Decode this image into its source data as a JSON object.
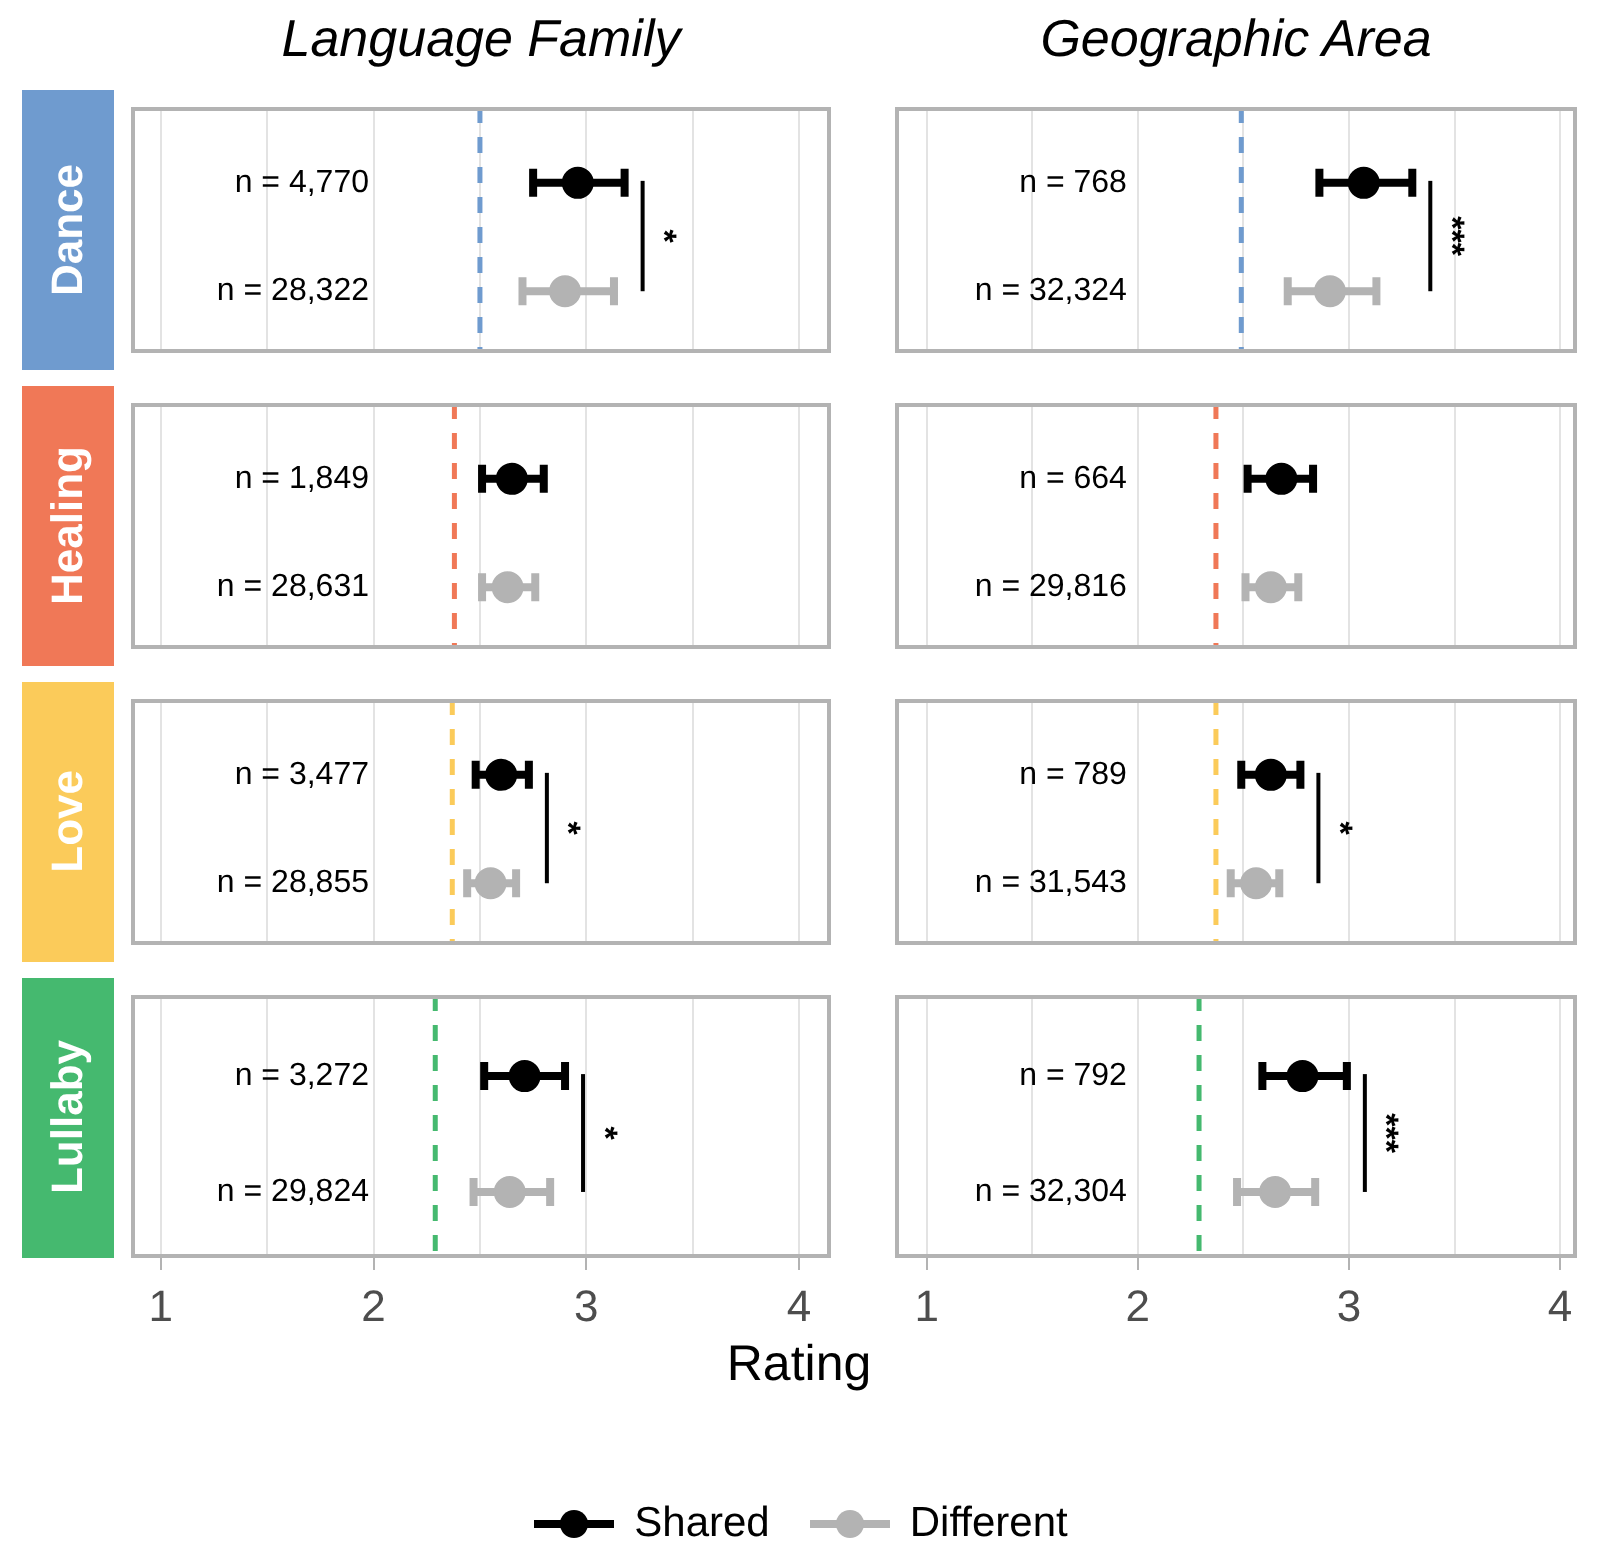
{
  "chart_data": [
    {
      "type": "scatter",
      "orientation": "horizontal",
      "title": "Language Family",
      "ylabel": "Dance",
      "categories": [
        "n = 4,770",
        "n = 28,322"
      ],
      "series": [
        {
          "color": "#000000",
          "values": [
            2.96,
            null
          ],
          "errors": [
            [
              2.75,
              3.18
            ],
            null
          ]
        },
        {
          "color": "#b3b3b3",
          "values": [
            null,
            2.9
          ],
          "errors": [
            null,
            [
              2.7,
              3.13
            ]
          ]
        }
      ],
      "xlim": [
        0.86,
        4.15
      ],
      "xticks": [
        1,
        {
          "value": 1.5,
          "label": null
        },
        2,
        {
          "value": 2.5,
          "label": null
        },
        3,
        {
          "value": 3.5,
          "label": null
        },
        4
      ],
      "grid": "x",
      "marker": "circle",
      "ref_lines": [
        {
          "axis": "x",
          "value": 2.5,
          "color": "#6f9bcf",
          "line_style": "dashed"
        }
      ],
      "annotations": [
        "*"
      ],
      "tick_labels": "y"
    },
    {
      "type": "scatter",
      "orientation": "horizontal",
      "title": "Geographic Area",
      "categories": [
        "n = 768",
        "n = 32,324"
      ],
      "series": [
        {
          "color": "#000000",
          "values": [
            3.07,
            null
          ],
          "errors": [
            [
              2.86,
              3.3
            ],
            null
          ]
        },
        {
          "color": "#b3b3b3",
          "values": [
            null,
            2.91
          ],
          "errors": [
            null,
            [
              2.71,
              3.13
            ]
          ]
        }
      ],
      "xlim": [
        0.85,
        4.08
      ],
      "xticks": [
        1,
        {
          "value": 1.5,
          "label": null
        },
        2,
        {
          "value": 2.5,
          "label": null
        },
        3,
        {
          "value": 3.5,
          "label": null
        },
        4
      ],
      "grid": "x",
      "marker": "circle",
      "ref_lines": [
        {
          "axis": "x",
          "value": 2.49,
          "color": "#6f9bcf",
          "line_style": "dashed"
        }
      ],
      "annotations": [
        "***"
      ],
      "tick_labels": "y"
    },
    {
      "type": "scatter",
      "orientation": "horizontal",
      "ylabel": "Healing",
      "categories": [
        "n = 1,849",
        "n = 28,631"
      ],
      "series": [
        {
          "color": "#000000",
          "values": [
            2.65,
            null
          ],
          "errors": [
            [
              2.51,
              2.8
            ],
            null
          ]
        },
        {
          "color": "#b3b3b3",
          "values": [
            null,
            2.63
          ],
          "errors": [
            null,
            [
              2.51,
              2.76
            ]
          ]
        }
      ],
      "xlim": [
        0.86,
        4.15
      ],
      "xticks": [
        1,
        {
          "value": 1.5,
          "label": null
        },
        2,
        {
          "value": 2.5,
          "label": null
        },
        3,
        {
          "value": 3.5,
          "label": null
        },
        4
      ],
      "grid": "x",
      "marker": "circle",
      "ref_lines": [
        {
          "axis": "x",
          "value": 2.38,
          "color": "#f07857",
          "line_style": "dashed"
        }
      ],
      "tick_labels": "y"
    },
    {
      "type": "scatter",
      "orientation": "horizontal",
      "categories": [
        "n = 664",
        "n = 29,816"
      ],
      "series": [
        {
          "color": "#000000",
          "values": [
            2.68,
            null
          ],
          "errors": [
            [
              2.52,
              2.83
            ],
            null
          ]
        },
        {
          "color": "#b3b3b3",
          "values": [
            null,
            2.63
          ],
          "errors": [
            null,
            [
              2.51,
              2.76
            ]
          ]
        }
      ],
      "xlim": [
        0.85,
        4.08
      ],
      "xticks": [
        1,
        {
          "value": 1.5,
          "label": null
        },
        2,
        {
          "value": 2.5,
          "label": null
        },
        3,
        {
          "value": 3.5,
          "label": null
        },
        4
      ],
      "grid": "x",
      "marker": "circle",
      "ref_lines": [
        {
          "axis": "x",
          "value": 2.37,
          "color": "#f07857",
          "line_style": "dashed"
        }
      ],
      "tick_labels": "y"
    },
    {
      "type": "scatter",
      "orientation": "horizontal",
      "ylabel": "Love",
      "categories": [
        "n = 3,477",
        "n = 28,855"
      ],
      "series": [
        {
          "color": "#000000",
          "values": [
            2.6,
            null
          ],
          "errors": [
            [
              2.48,
              2.73
            ],
            null
          ]
        },
        {
          "color": "#b3b3b3",
          "values": [
            null,
            2.55
          ],
          "errors": [
            null,
            [
              2.44,
              2.67
            ]
          ]
        }
      ],
      "xlim": [
        0.86,
        4.15
      ],
      "xticks": [
        1,
        {
          "value": 1.5,
          "label": null
        },
        2,
        {
          "value": 2.5,
          "label": null
        },
        3,
        {
          "value": 3.5,
          "label": null
        },
        4
      ],
      "grid": "x",
      "marker": "circle",
      "ref_lines": [
        {
          "axis": "x",
          "value": 2.37,
          "color": "#fbcb5a",
          "line_style": "dashed"
        }
      ],
      "annotations": [
        "*"
      ],
      "tick_labels": "y"
    },
    {
      "type": "scatter",
      "orientation": "horizontal",
      "categories": [
        "n = 789",
        "n = 31,543"
      ],
      "series": [
        {
          "color": "#000000",
          "values": [
            2.63,
            null
          ],
          "errors": [
            [
              2.49,
              2.77
            ],
            null
          ]
        },
        {
          "color": "#b3b3b3",
          "values": [
            null,
            2.56
          ],
          "errors": [
            null,
            [
              2.44,
              2.67
            ]
          ]
        }
      ],
      "xlim": [
        0.85,
        4.08
      ],
      "xticks": [
        1,
        {
          "value": 1.5,
          "label": null
        },
        2,
        {
          "value": 2.5,
          "label": null
        },
        3,
        {
          "value": 3.5,
          "label": null
        },
        4
      ],
      "grid": "x",
      "marker": "circle",
      "ref_lines": [
        {
          "axis": "x",
          "value": 2.37,
          "color": "#fbcb5a",
          "line_style": "dashed"
        }
      ],
      "annotations": [
        "*"
      ],
      "tick_labels": "y"
    },
    {
      "type": "scatter",
      "orientation": "horizontal",
      "ylabel": "Lullaby",
      "xlabel": "Rating",
      "legend": "bottom",
      "categories": [
        "n = 3,272",
        "n = 29,824"
      ],
      "series": [
        {
          "name": "Shared",
          "color": "#000000",
          "values": [
            2.71,
            null
          ],
          "errors": [
            [
              2.52,
              2.9
            ],
            null
          ]
        },
        {
          "name": "Different",
          "color": "#b3b3b3",
          "values": [
            null,
            2.64
          ],
          "errors": [
            null,
            [
              2.47,
              2.83
            ]
          ]
        }
      ],
      "xlim": [
        0.86,
        4.15
      ],
      "xticks": [
        1,
        {
          "value": 1.5,
          "label": null
        },
        2,
        {
          "value": 2.5,
          "label": null
        },
        3,
        {
          "value": 3.5,
          "label": null
        },
        4
      ],
      "grid": "x",
      "marker": "circle",
      "ref_lines": [
        {
          "axis": "x",
          "value": 2.29,
          "color": "#45b96f",
          "line_style": "dashed"
        }
      ],
      "annotations": [
        "*"
      ]
    },
    {
      "type": "scatter",
      "orientation": "horizontal",
      "categories": [
        "n = 792",
        "n = 32,304"
      ],
      "series": [
        {
          "color": "#000000",
          "values": [
            2.78,
            null
          ],
          "errors": [
            [
              2.59,
              2.99
            ],
            null
          ]
        },
        {
          "color": "#b3b3b3",
          "values": [
            null,
            2.65
          ],
          "errors": [
            null,
            [
              2.47,
              2.84
            ]
          ]
        }
      ],
      "xlim": [
        0.85,
        4.08
      ],
      "xticks": [
        1,
        {
          "value": 1.5,
          "label": null
        },
        2,
        {
          "value": 2.5,
          "label": null
        },
        3,
        {
          "value": 3.5,
          "label": null
        },
        4
      ],
      "grid": "x",
      "marker": "circle",
      "ref_lines": [
        {
          "axis": "x",
          "value": 2.29,
          "color": "#45b96f",
          "line_style": "dashed"
        }
      ],
      "annotations": [
        "***"
      ]
    }
  ]
}
